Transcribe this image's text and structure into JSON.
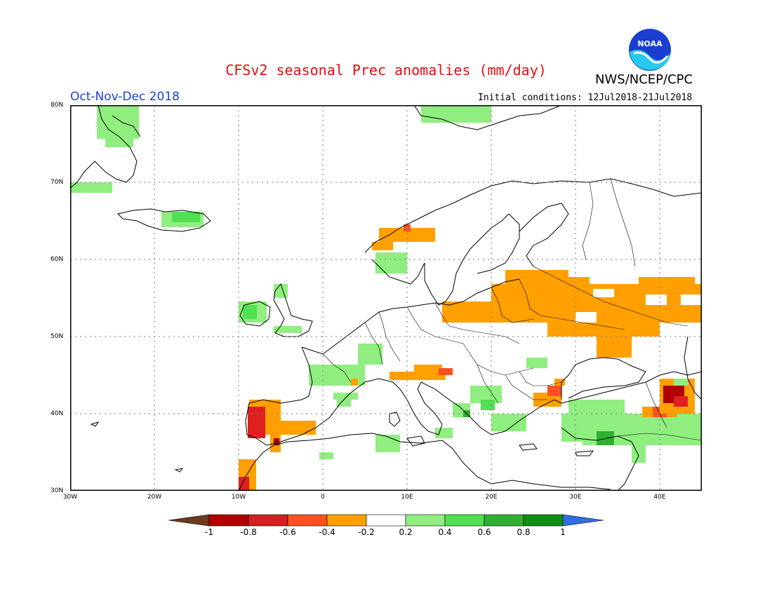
{
  "title": "CFSv2 seasonal Prec anomalies (mm/day)",
  "agency": "NWS/NCEP/CPC",
  "logo_text": "NOAA",
  "season": "Oct-Nov-Dec 2018",
  "initial_conditions": "Initial conditions: 12Jul2018-21Jul2018",
  "lat_labels": [
    "80N",
    "70N",
    "60N",
    "50N",
    "40N",
    "30N"
  ],
  "lon_labels": [
    "30W",
    "20W",
    "10W",
    "0",
    "10E",
    "20E",
    "30E",
    "40E"
  ],
  "colorbar": {
    "labels": [
      "-1",
      "-0.8",
      "-0.6",
      "-0.4",
      "-0.2",
      "0.2",
      "0.4",
      "0.6",
      "0.8",
      "1"
    ],
    "colors": [
      "#6b3a1f",
      "#b00000",
      "#d42020",
      "#ff5020",
      "#ffa000",
      "#ffffff",
      "#90ee80",
      "#50e050",
      "#30b030",
      "#109010",
      "#2f6fe0"
    ]
  },
  "legend_palette": {
    "red_dark": "#b00000",
    "red": "#e02020",
    "orange_red": "#ff5020",
    "orange": "#ffa000",
    "light_green": "#90ee80",
    "green": "#50e050",
    "dark_green": "#30b030"
  }
}
